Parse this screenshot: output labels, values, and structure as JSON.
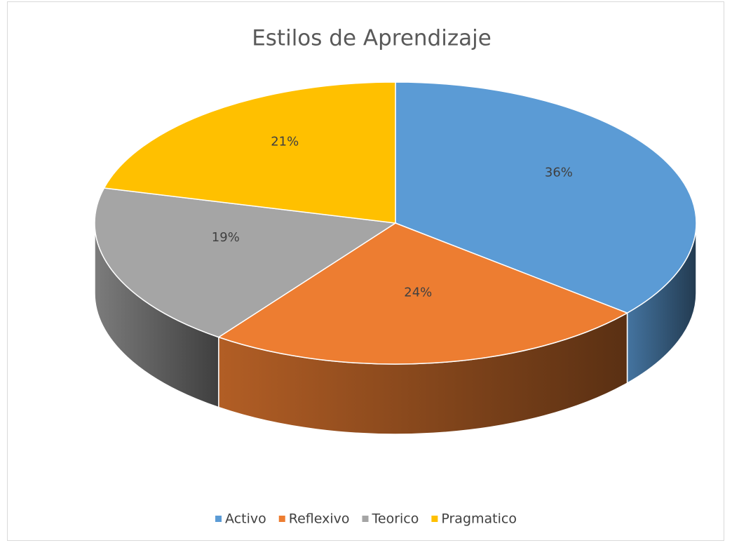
{
  "chart_data": {
    "type": "pie3d",
    "title": "Estilos de Aprendizaje",
    "categories": [
      "Activo",
      "Reflexivo",
      "Teorico",
      "Pragmatico"
    ],
    "values": [
      36,
      24,
      19,
      21
    ],
    "value_labels": [
      "36%",
      "24%",
      "19%",
      "21%"
    ],
    "colors": [
      "#5b9bd5",
      "#ed7d31",
      "#a5a5a5",
      "#ffc000"
    ],
    "legend": "bottom"
  }
}
